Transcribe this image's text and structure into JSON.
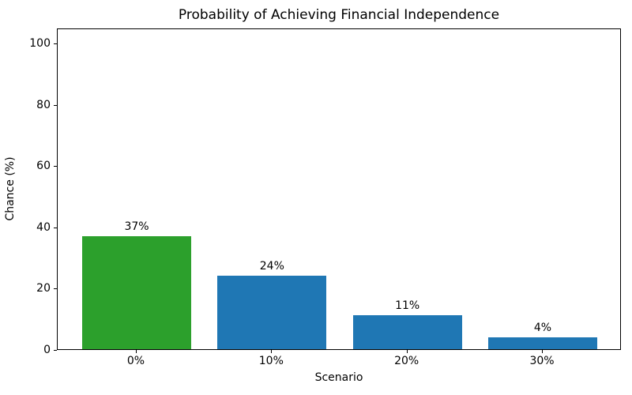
{
  "chart_data": {
    "type": "bar",
    "title": "Probability of Achieving Financial Independence",
    "xlabel": "Scenario",
    "ylabel": "Chance (%)",
    "categories": [
      "0%",
      "10%",
      "20%",
      "30%"
    ],
    "values": [
      37,
      24,
      11,
      4
    ],
    "bar_labels": [
      "37%",
      "24%",
      "11%",
      "4%"
    ],
    "bar_colors": [
      "#2ca02c",
      "#1f77b4",
      "#1f77b4",
      "#1f77b4"
    ],
    "yticks": [
      0,
      20,
      40,
      60,
      80,
      100
    ],
    "ylim": [
      0,
      105
    ],
    "grid": false,
    "legend": "none",
    "background_color": "#ffffff",
    "spine_color": "#000000"
  }
}
